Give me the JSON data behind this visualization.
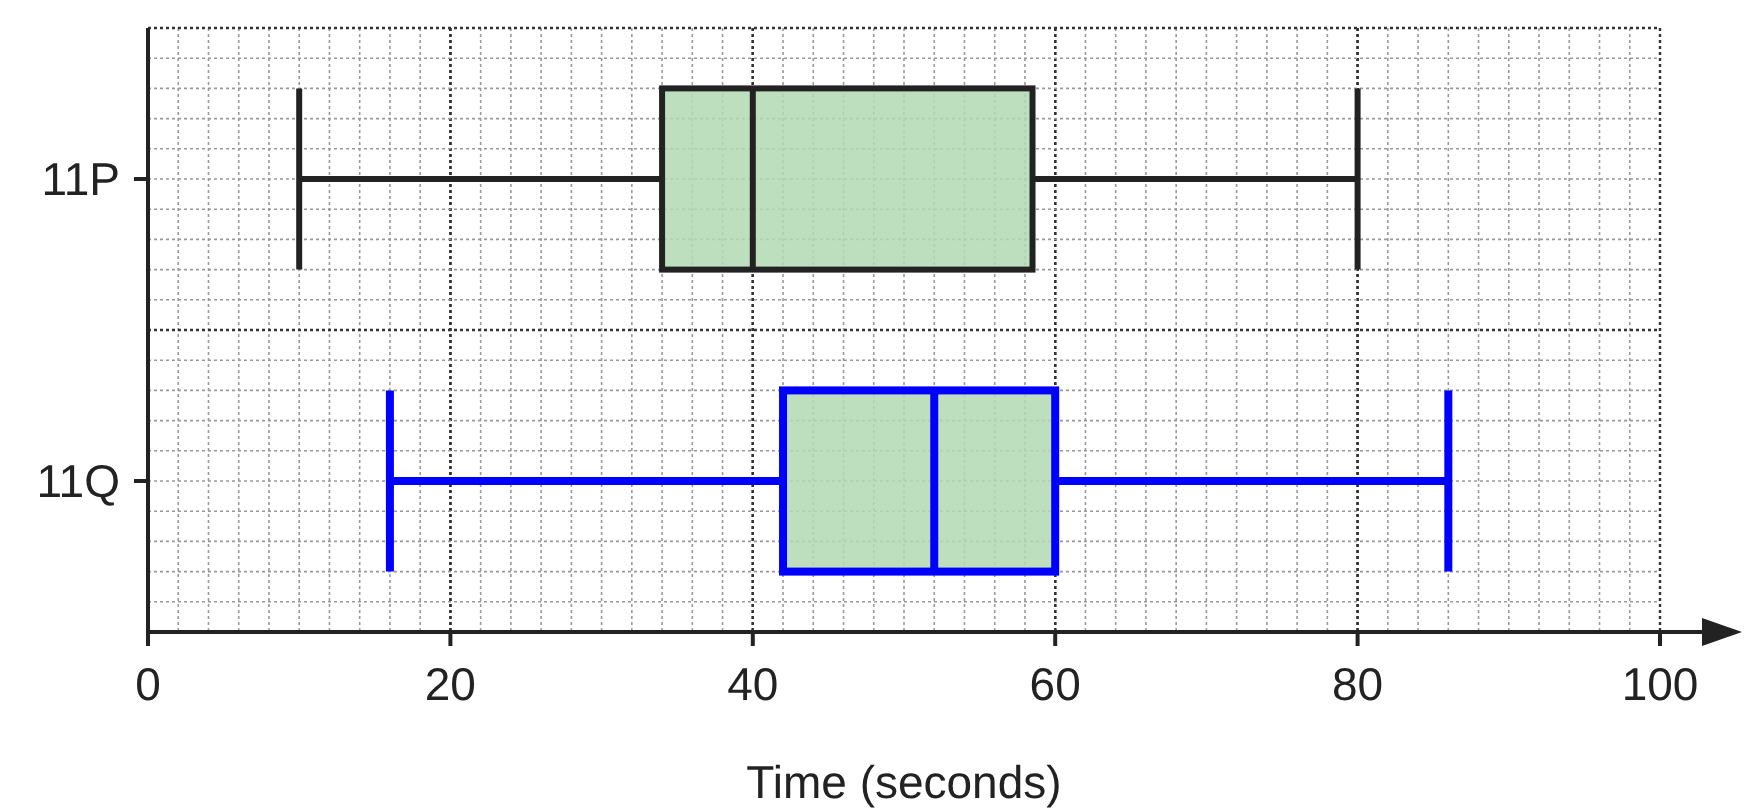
{
  "chart_data": {
    "type": "box",
    "orientation": "horizontal",
    "xlabel": "Time (seconds)",
    "categories": [
      "11P",
      "11Q"
    ],
    "boxes": [
      {
        "low": 10,
        "q1": 34,
        "median": 40,
        "q3": 58.5,
        "high": 80
      },
      {
        "low": 16,
        "q1": 42,
        "median": 52,
        "q3": 60,
        "high": 86
      }
    ],
    "color": "#b3d9b3",
    "colors": [
      "#222222",
      "#0000ff"
    ],
    "xlim": [
      0,
      100
    ],
    "xticks": [
      0,
      20,
      40,
      60,
      80,
      100
    ],
    "grid": true
  }
}
